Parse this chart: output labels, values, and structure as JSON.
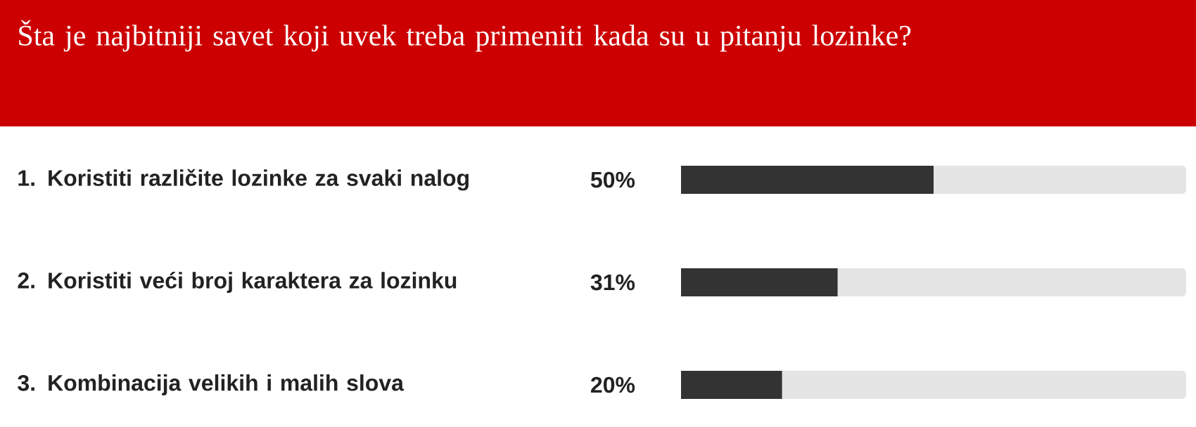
{
  "chart_data": {
    "type": "bar",
    "orientation": "horizontal",
    "title": "Šta je najbitniji savet koji uvek treba primeniti kada su u pitanju lozinke?",
    "categories": [
      "1. Koristiti različite lozinke za svaki nalog",
      "2. Koristiti veći broj karaktera za lozinku",
      "3. Kombinacija velikih i malih slova"
    ],
    "values": [
      50,
      31,
      20
    ],
    "value_labels": [
      "50%",
      "31%",
      "20%"
    ],
    "color": "#333333",
    "xlim": [
      0,
      100
    ],
    "tick_labels": "y"
  }
}
